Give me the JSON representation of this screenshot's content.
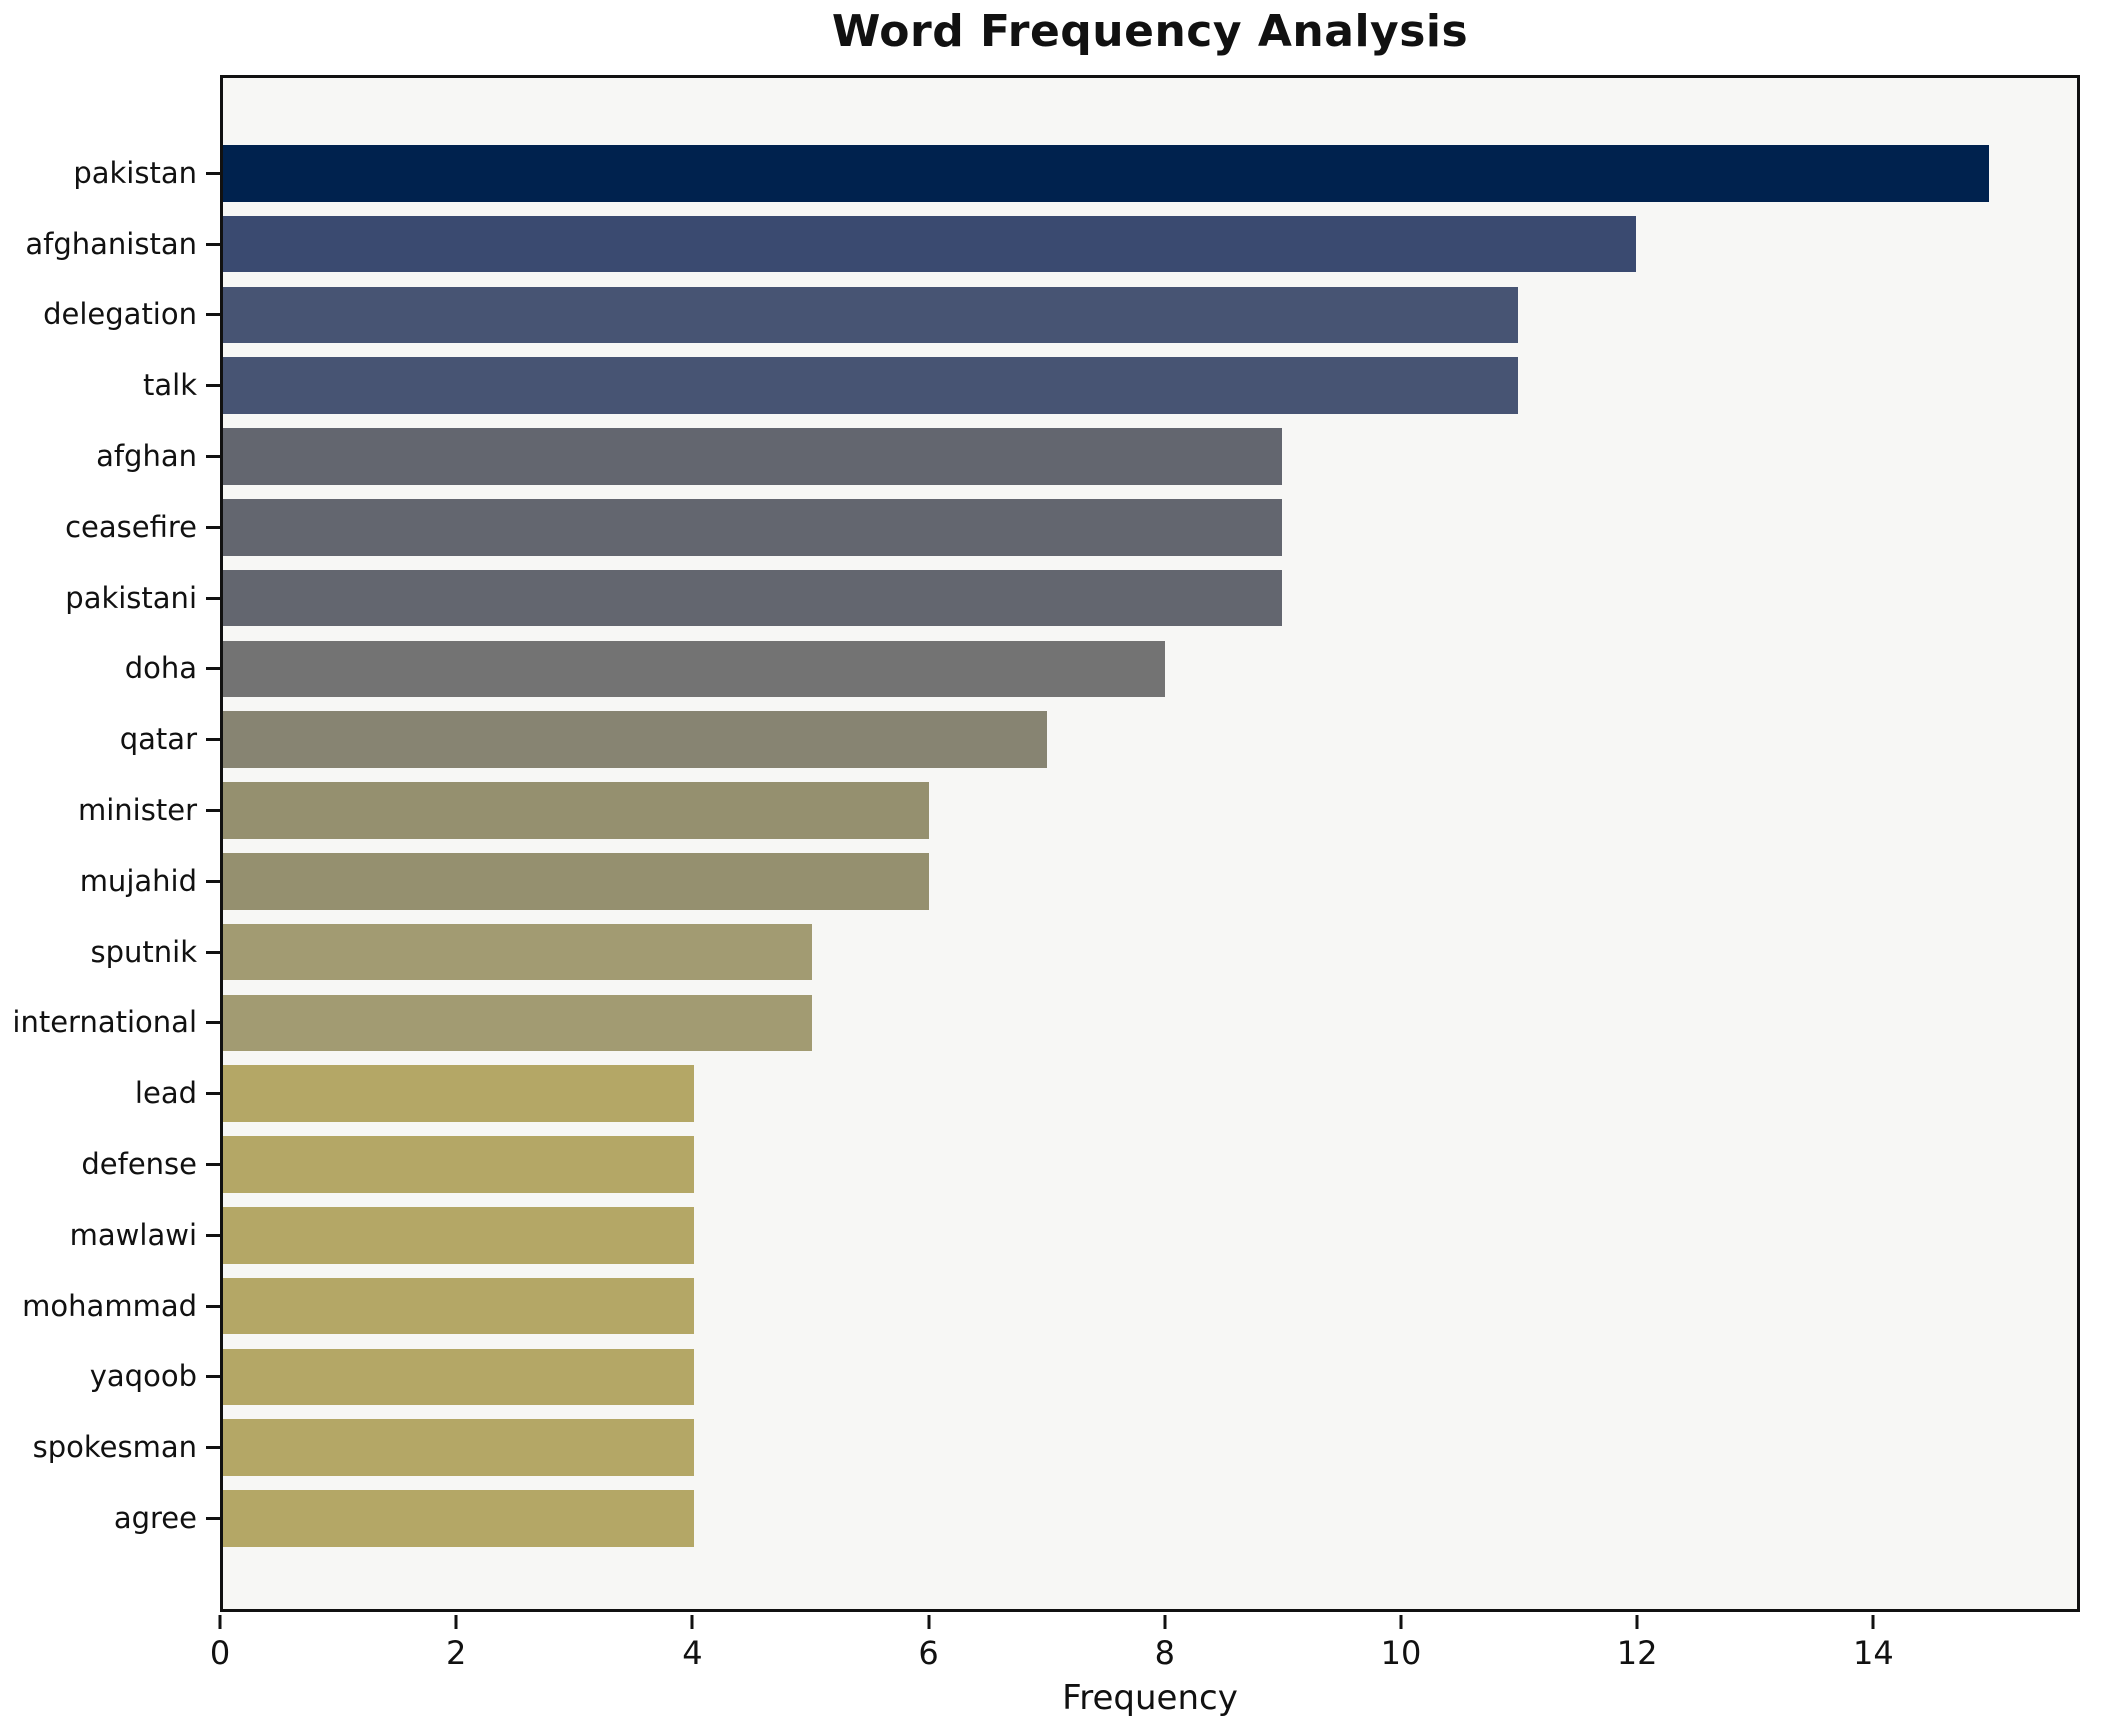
{
  "chart_data": {
    "type": "bar",
    "orientation": "horizontal",
    "title": "Word Frequency Analysis",
    "xlabel": "Frequency",
    "ylabel": "",
    "categories": [
      "pakistan",
      "afghanistan",
      "delegation",
      "talk",
      "afghan",
      "ceasefire",
      "pakistani",
      "doha",
      "qatar",
      "minister",
      "mujahid",
      "sputnik",
      "international",
      "lead",
      "defense",
      "mawlawi",
      "mohammad",
      "yaqoob",
      "spokesman",
      "agree"
    ],
    "values": [
      15,
      12,
      11,
      11,
      9,
      9,
      9,
      8,
      7,
      6,
      6,
      5,
      5,
      4,
      4,
      4,
      4,
      4,
      4,
      4
    ],
    "bar_colors": [
      "#00224e",
      "#3a4a70",
      "#475473",
      "#475473",
      "#63666f",
      "#63666f",
      "#63666f",
      "#737373",
      "#878472",
      "#95906f",
      "#95906f",
      "#a29b72",
      "#a29b72",
      "#b4a766",
      "#b4a766",
      "#b4a766",
      "#b4a766",
      "#b4a766",
      "#b4a766",
      "#b4a766"
    ],
    "xlim": [
      0,
      15.75
    ],
    "xticks": [
      0,
      2,
      4,
      6,
      8,
      10,
      12,
      14
    ],
    "grid": false,
    "legend": null,
    "colormap": "cividis",
    "plot_background": "#f7f7f5",
    "figure_background": "#ffffff",
    "spine_color": "#111111",
    "text_color": "#111111"
  }
}
